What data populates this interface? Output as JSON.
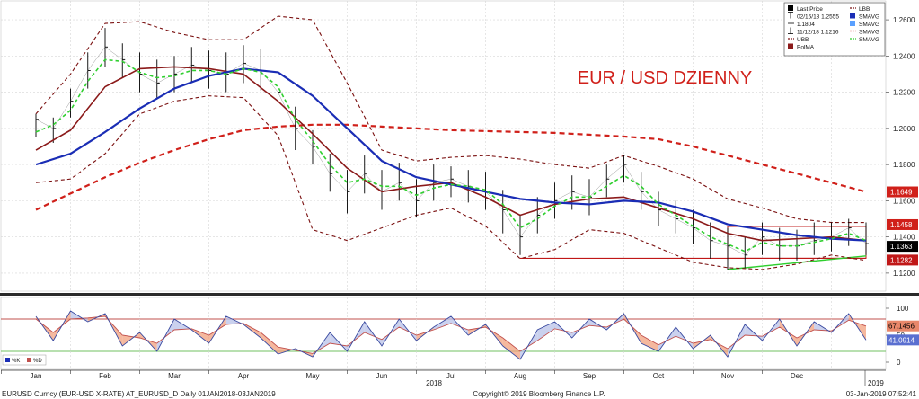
{
  "footer": {
    "left": "EURUSD Curncy (EUR-USD X-RATE) AT_EURUSD_D  Daily 01JAN2018-03JAN2019",
    "center": "Copyright© 2019 Bloomberg Finance L.P.",
    "right": "03-Jan-2019 07:52:41"
  },
  "chart_data": [
    {
      "type": "line",
      "title": "EUR / USD DZIENNY",
      "title_color": "#d0201a",
      "ylim": [
        1.113,
        1.266
      ],
      "y_ticks": [
        "1.1200",
        "1.1400",
        "1.1600",
        "1.1800",
        "1.2000",
        "1.2200",
        "1.2400",
        "1.2600"
      ],
      "x_month_labels": [
        "Jan",
        "Feb",
        "Mar",
        "Apr",
        "May",
        "Jun",
        "Jul",
        "Aug",
        "Sep",
        "Oct",
        "Nov",
        "Dec"
      ],
      "x_year_labels": [
        "2018",
        "2019"
      ],
      "grid": true,
      "legend": {
        "position": "top-right",
        "left_items": [
          {
            "label": "Last Price",
            "color": "#000000",
            "icon": "bar-icon"
          },
          {
            "label": "02/16/18 1.2555",
            "color": "#000000",
            "icon": "high-icon"
          },
          {
            "label": "1.1804",
            "color": "#000000",
            "icon": "line-icon"
          },
          {
            "label": "11/12/18 1.1216",
            "color": "#000000",
            "icon": "low-icon"
          },
          {
            "label": "UBB",
            "color": "#7a1010",
            "icon": "dashed-icon"
          },
          {
            "label": "BolMA",
            "color": "#8b1a1a",
            "icon": "square-icon"
          }
        ],
        "right_items": [
          {
            "label": "LBB",
            "color": "#7a1010",
            "icon": "dashed-icon"
          },
          {
            "label": "SMAVG",
            "color": "#1a2db5",
            "icon": "square-icon"
          },
          {
            "label": "SMAVG",
            "color": "#5aa0ff",
            "icon": "square-icon"
          },
          {
            "label": "SMAVG",
            "color": "#d0201a",
            "icon": "dashed-icon"
          },
          {
            "label": "SMAVG",
            "color": "#2fcf2f",
            "icon": "dashed-icon"
          }
        ]
      },
      "badges": [
        {
          "text": "1.1649",
          "value": 1.1649,
          "bg": "#d0201a",
          "color": "#ffffff"
        },
        {
          "text": "1.1458",
          "value": 1.1458,
          "bg": "#d0201a",
          "color": "#ffffff"
        },
        {
          "text": "1.1363",
          "value": 1.1363,
          "bg": "#000000",
          "color": "#ffffff"
        },
        {
          "text": "1.1282",
          "value": 1.1282,
          "bg": "#c01818",
          "color": "#ffffff"
        }
      ],
      "range_box": {
        "x_start": 10.0,
        "x_end": 12.0,
        "y_low": 1.1282,
        "y_high": 1.1458,
        "color": "#c01818"
      },
      "support_line": {
        "x_start": 7.0,
        "x_end": 12.0,
        "y": 1.1282,
        "color": "#c01818"
      },
      "trend_line": {
        "x": [
          10.0,
          12.0
        ],
        "y": [
          1.122,
          1.1295
        ],
        "color": "#2fcf2f"
      },
      "series": [
        {
          "color": "#000000",
          "style": "ohlc",
          "x": [
            0.0,
            0.25,
            0.5,
            0.75,
            1.0,
            1.25,
            1.5,
            1.75,
            2.0,
            2.25,
            2.5,
            2.75,
            3.0,
            3.25,
            3.5,
            3.75,
            4.0,
            4.25,
            4.5,
            4.75,
            5.0,
            5.25,
            5.5,
            5.75,
            6.0,
            6.25,
            6.5,
            6.75,
            7.0,
            7.25,
            7.5,
            7.75,
            8.0,
            8.25,
            8.5,
            8.75,
            9.0,
            9.25,
            9.5,
            9.75,
            10.0,
            10.25,
            10.5,
            10.75,
            11.0,
            11.25,
            11.5,
            11.75,
            12.0
          ],
          "y": [
            1.205,
            1.2,
            1.215,
            1.232,
            1.245,
            1.238,
            1.23,
            1.225,
            1.23,
            1.235,
            1.232,
            1.23,
            1.236,
            1.232,
            1.22,
            1.2,
            1.19,
            1.175,
            1.165,
            1.175,
            1.165,
            1.17,
            1.16,
            1.17,
            1.172,
            1.168,
            1.165,
            1.155,
            1.14,
            1.152,
            1.16,
            1.165,
            1.162,
            1.172,
            1.18,
            1.165,
            1.155,
            1.15,
            1.145,
            1.138,
            1.135,
            1.13,
            1.14,
            1.135,
            1.135,
            1.138,
            1.14,
            1.145,
            1.1363
          ],
          "high": [
            1.208,
            1.206,
            1.222,
            1.242,
            1.2555,
            1.247,
            1.242,
            1.238,
            1.24,
            1.245,
            1.243,
            1.242,
            1.246,
            1.244,
            1.232,
            1.212,
            1.199,
            1.186,
            1.177,
            1.185,
            1.177,
            1.181,
            1.172,
            1.18,
            1.179,
            1.177,
            1.176,
            1.166,
            1.152,
            1.162,
            1.17,
            1.174,
            1.172,
            1.18,
            1.185,
            1.176,
            1.165,
            1.16,
            1.155,
            1.148,
            1.145,
            1.14,
            1.148,
            1.145,
            1.144,
            1.148,
            1.148,
            1.15,
            1.148
          ],
          "low": [
            1.195,
            1.192,
            1.206,
            1.222,
            1.234,
            1.228,
            1.22,
            1.216,
            1.22,
            1.225,
            1.222,
            1.22,
            1.225,
            1.221,
            1.208,
            1.188,
            1.18,
            1.165,
            1.153,
            1.164,
            1.155,
            1.16,
            1.151,
            1.16,
            1.162,
            1.159,
            1.155,
            1.142,
            1.13,
            1.142,
            1.15,
            1.155,
            1.152,
            1.162,
            1.17,
            1.155,
            1.146,
            1.142,
            1.136,
            1.128,
            1.1216,
            1.123,
            1.13,
            1.127,
            1.127,
            1.13,
            1.132,
            1.135,
            1.13
          ]
        },
        {
          "color": "#1a2db5",
          "style": "solid",
          "width": 2.2,
          "x": [
            0.0,
            0.5,
            1.0,
            1.5,
            2.0,
            2.5,
            3.0,
            3.5,
            4.0,
            4.5,
            5.0,
            5.5,
            6.0,
            6.5,
            7.0,
            7.5,
            8.0,
            8.5,
            9.0,
            9.5,
            10.0,
            10.5,
            11.0,
            11.5,
            12.0
          ],
          "y": [
            1.18,
            1.186,
            1.198,
            1.211,
            1.222,
            1.229,
            1.233,
            1.231,
            1.218,
            1.2,
            1.182,
            1.173,
            1.169,
            1.165,
            1.161,
            1.159,
            1.158,
            1.16,
            1.159,
            1.154,
            1.147,
            1.144,
            1.141,
            1.139,
            1.138
          ]
        },
        {
          "color": "#8b1a1a",
          "style": "solid",
          "width": 1.6,
          "x": [
            0.0,
            0.5,
            1.0,
            1.5,
            2.0,
            2.5,
            3.0,
            3.5,
            4.0,
            4.5,
            5.0,
            5.5,
            6.0,
            6.5,
            7.0,
            7.5,
            8.0,
            8.5,
            9.0,
            9.5,
            10.0,
            10.5,
            11.0,
            11.5,
            12.0
          ],
          "y": [
            1.188,
            1.199,
            1.223,
            1.233,
            1.234,
            1.233,
            1.23,
            1.215,
            1.197,
            1.178,
            1.165,
            1.168,
            1.17,
            1.162,
            1.152,
            1.158,
            1.161,
            1.162,
            1.156,
            1.15,
            1.142,
            1.138,
            1.139,
            1.14,
            1.138
          ]
        },
        {
          "color": "#d0201a",
          "style": "dashed",
          "width": 2.2,
          "x": [
            0.0,
            0.5,
            1.0,
            1.5,
            2.0,
            2.5,
            3.0,
            3.5,
            4.0,
            4.5,
            5.0,
            5.5,
            6.0,
            6.5,
            7.0,
            7.5,
            8.0,
            8.5,
            9.0,
            9.5,
            10.0,
            10.5,
            11.0,
            11.5,
            12.0
          ],
          "y": [
            1.155,
            1.164,
            1.173,
            1.181,
            1.188,
            1.194,
            1.199,
            1.201,
            1.202,
            1.202,
            1.201,
            1.2,
            1.199,
            1.1985,
            1.198,
            1.1975,
            1.1965,
            1.1955,
            1.194,
            1.19,
            1.185,
            1.18,
            1.175,
            1.17,
            1.1649
          ]
        },
        {
          "color": "#2fcf2f",
          "style": "dashed",
          "width": 1.6,
          "x": [
            0.0,
            0.25,
            0.5,
            0.75,
            1.0,
            1.25,
            1.5,
            1.75,
            2.0,
            2.25,
            2.5,
            2.75,
            3.0,
            3.25,
            3.5,
            3.75,
            4.0,
            4.25,
            4.5,
            4.75,
            5.0,
            5.25,
            5.5,
            5.75,
            6.0,
            6.25,
            6.5,
            6.75,
            7.0,
            7.25,
            7.5,
            7.75,
            8.0,
            8.25,
            8.5,
            8.75,
            9.0,
            9.25,
            9.5,
            9.75,
            10.0,
            10.25,
            10.5,
            10.75,
            11.0,
            11.25,
            11.5,
            11.75,
            12.0
          ],
          "y": [
            1.198,
            1.202,
            1.21,
            1.226,
            1.238,
            1.237,
            1.231,
            1.228,
            1.229,
            1.232,
            1.232,
            1.23,
            1.233,
            1.231,
            1.223,
            1.205,
            1.193,
            1.18,
            1.17,
            1.172,
            1.168,
            1.168,
            1.163,
            1.167,
            1.169,
            1.168,
            1.166,
            1.158,
            1.145,
            1.15,
            1.157,
            1.162,
            1.162,
            1.168,
            1.174,
            1.168,
            1.158,
            1.152,
            1.146,
            1.14,
            1.136,
            1.132,
            1.137,
            1.135,
            1.135,
            1.137,
            1.139,
            1.142,
            1.138
          ]
        },
        {
          "color": "#7a1010",
          "style": "dashed",
          "width": 1.1,
          "x": [
            0.0,
            0.5,
            1.0,
            1.5,
            2.0,
            2.5,
            3.0,
            3.5,
            4.0,
            4.5,
            5.0,
            5.5,
            6.0,
            6.5,
            7.0,
            7.5,
            8.0,
            8.5,
            9.0,
            9.5,
            10.0,
            10.5,
            11.0,
            11.5,
            12.0
          ],
          "y": [
            1.208,
            1.23,
            1.258,
            1.259,
            1.253,
            1.249,
            1.249,
            1.262,
            1.26,
            1.225,
            1.188,
            1.182,
            1.184,
            1.185,
            1.183,
            1.18,
            1.178,
            1.185,
            1.179,
            1.172,
            1.161,
            1.156,
            1.15,
            1.148,
            1.148
          ]
        },
        {
          "color": "#7a1010",
          "style": "dashed",
          "width": 1.1,
          "x": [
            0.0,
            0.5,
            1.0,
            1.5,
            2.0,
            2.5,
            3.0,
            3.5,
            4.0,
            4.5,
            5.0,
            5.5,
            6.0,
            6.5,
            7.0,
            7.5,
            8.0,
            8.5,
            9.0,
            9.5,
            10.0,
            10.5,
            11.0,
            11.5,
            12.0
          ],
          "y": [
            1.17,
            1.172,
            1.186,
            1.208,
            1.215,
            1.218,
            1.217,
            1.196,
            1.144,
            1.138,
            1.145,
            1.152,
            1.156,
            1.146,
            1.128,
            1.133,
            1.144,
            1.142,
            1.134,
            1.126,
            1.123,
            1.122,
            1.125,
            1.13,
            1.127
          ]
        }
      ]
    },
    {
      "type": "line",
      "ylim": [
        -5,
        105
      ],
      "y_ticks": [
        "0",
        "50",
        "100"
      ],
      "h_lines": [
        {
          "y": 80,
          "color": "#c0504d"
        },
        {
          "y": 20,
          "color": "#70c060"
        }
      ],
      "legend": [
        {
          "label": "%K",
          "color": "#1a2db5"
        },
        {
          "label": "%D",
          "color": "#c0504d"
        }
      ],
      "badges": [
        {
          "text": "67.1456",
          "value": 67.1456,
          "bg": "#e8876a",
          "color": "#000000"
        },
        {
          "text": "41.0914",
          "value": 41.0914,
          "bg": "#5a6fd0",
          "color": "#ffffff"
        }
      ],
      "series": [
        {
          "name": "%K",
          "color": "#3a4aa0",
          "x": [
            0.0,
            0.25,
            0.5,
            0.75,
            1.0,
            1.25,
            1.5,
            1.75,
            2.0,
            2.25,
            2.5,
            2.75,
            3.0,
            3.25,
            3.5,
            3.75,
            4.0,
            4.25,
            4.5,
            4.75,
            5.0,
            5.25,
            5.5,
            5.75,
            6.0,
            6.25,
            6.5,
            6.75,
            7.0,
            7.25,
            7.5,
            7.75,
            8.0,
            8.25,
            8.5,
            8.75,
            9.0,
            9.25,
            9.5,
            9.75,
            10.0,
            10.25,
            10.5,
            10.75,
            11.0,
            11.25,
            11.5,
            11.75,
            12.0
          ],
          "y": [
            85,
            40,
            95,
            75,
            90,
            30,
            55,
            20,
            80,
            60,
            35,
            85,
            70,
            45,
            15,
            25,
            10,
            55,
            20,
            75,
            30,
            80,
            40,
            65,
            85,
            50,
            70,
            30,
            5,
            60,
            75,
            45,
            80,
            60,
            90,
            35,
            20,
            65,
            25,
            50,
            10,
            70,
            40,
            80,
            30,
            75,
            55,
            90,
            41
          ]
        },
        {
          "name": "%D",
          "color": "#c0504d",
          "x": [
            0.0,
            0.25,
            0.5,
            0.75,
            1.0,
            1.25,
            1.5,
            1.75,
            2.0,
            2.25,
            2.5,
            2.75,
            3.0,
            3.25,
            3.5,
            3.75,
            4.0,
            4.25,
            4.5,
            4.75,
            5.0,
            5.25,
            5.5,
            5.75,
            6.0,
            6.25,
            6.5,
            6.75,
            7.0,
            7.25,
            7.5,
            7.75,
            8.0,
            8.25,
            8.5,
            8.75,
            9.0,
            9.25,
            9.5,
            9.75,
            10.0,
            10.25,
            10.5,
            10.75,
            11.0,
            11.25,
            11.5,
            11.75,
            12.0
          ],
          "y": [
            80,
            55,
            80,
            82,
            85,
            50,
            45,
            35,
            60,
            62,
            50,
            70,
            72,
            55,
            28,
            22,
            16,
            35,
            30,
            55,
            42,
            65,
            50,
            60,
            72,
            60,
            65,
            45,
            20,
            40,
            62,
            55,
            68,
            65,
            80,
            50,
            32,
            48,
            35,
            42,
            25,
            50,
            48,
            65,
            45,
            60,
            58,
            78,
            67
          ]
        }
      ]
    }
  ]
}
